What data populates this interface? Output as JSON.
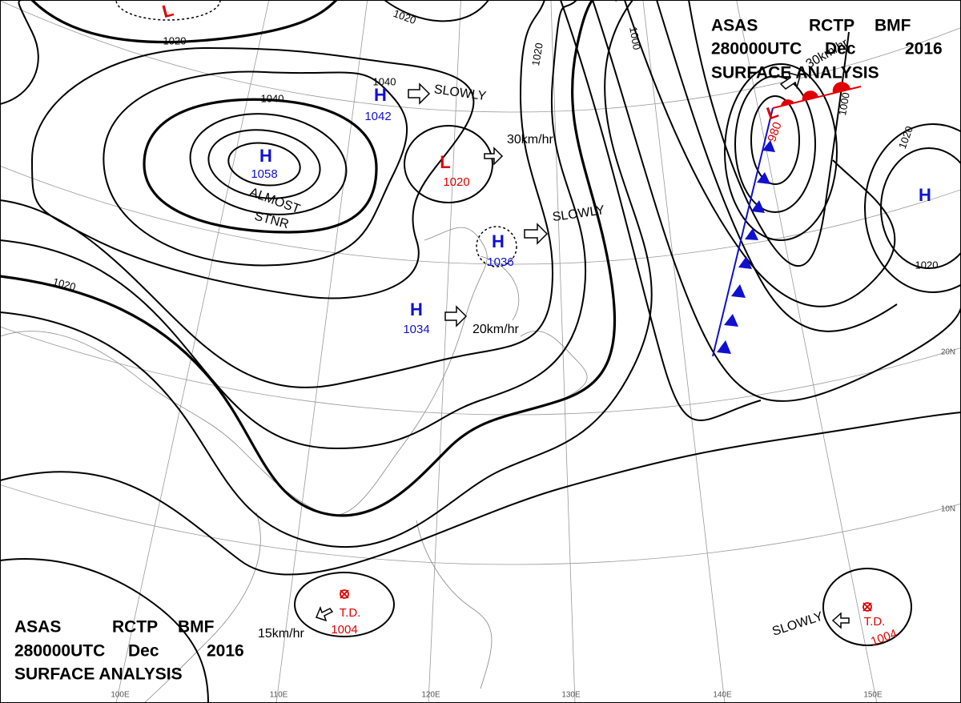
{
  "header_top": {
    "line1": [
      "ASAS",
      "RCTP",
      "BMF"
    ],
    "line2": [
      "280000UTC",
      "Dec",
      "2016"
    ],
    "line3": "SURFACE ANALYSIS"
  },
  "header_bottom": {
    "line1": [
      "ASAS",
      "RCTP",
      "BMF"
    ],
    "line2": [
      "280000UTC",
      "Dec",
      "2016"
    ],
    "line3": "SURFACE ANALYSIS"
  },
  "pressure_systems": [
    {
      "symbol": "H",
      "pressure": 1058
    },
    {
      "symbol": "H",
      "pressure": 1042
    },
    {
      "symbol": "L",
      "pressure": 1020
    },
    {
      "symbol": "H",
      "pressure": 1036
    },
    {
      "symbol": "H",
      "pressure": 1034
    },
    {
      "symbol": "L",
      "pressure": 980
    },
    {
      "symbol": "H"
    },
    {
      "symbol": "L"
    },
    {
      "symbol": "T.D.",
      "pressure": 1004
    },
    {
      "symbol": "T.D.",
      "pressure": 1004
    }
  ],
  "isobar_labels": [
    1020,
    1020,
    1040,
    1040,
    1020,
    1020,
    1000,
    1000,
    1020,
    1020
  ],
  "motion_labels": [
    "SLOWLY",
    "30km/hr",
    "SLOWLY",
    "20km/hr",
    "30km/hr",
    "15km/hr",
    "SLOWLY"
  ],
  "notes": [
    "ALMOST",
    "STNR"
  ],
  "grid_labels": [
    "100E",
    "110E",
    "120E",
    "130E",
    "140E",
    "150E",
    "20N",
    "10N"
  ]
}
